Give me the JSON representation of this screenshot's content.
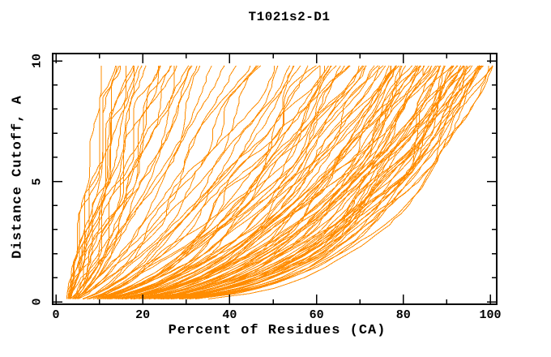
{
  "chart_data": {
    "type": "line",
    "title": "T1021s2-D1",
    "xlabel": "Percent of Residues (CA)",
    "ylabel": "Distance Cutoff, A",
    "xlim": [
      0,
      100
    ],
    "ylim": [
      0,
      10
    ],
    "x_major_ticks": [
      0,
      20,
      40,
      60,
      80,
      100
    ],
    "x_minor_step": 10,
    "y_major_ticks": [
      0,
      5,
      10
    ],
    "y_minor_step": 1,
    "grid": false,
    "legend": "none",
    "frame": "full-box-with-inward-ticks",
    "line_color": "#ff8c00",
    "axis_color": "#000000",
    "background_color": "#ffffff",
    "n_curves": 118,
    "curve_model": "Each curve is one model's GDT profile: percent(d) = start + (end - start) * (d / 9.85)^shape for cutoff d in [0.12, 9.85] Angstroms; all curves start near 3% at ~0.1 A. Values below are [end_percent_at_10A, shape] estimated from the plot.",
    "curves": [
      [
        11,
        0.95
      ],
      [
        12,
        0.9
      ],
      [
        13,
        1.0
      ],
      [
        14,
        0.88
      ],
      [
        15,
        0.92
      ],
      [
        15.5,
        0.85
      ],
      [
        16.5,
        0.9
      ],
      [
        17,
        0.95
      ],
      [
        18,
        0.85
      ],
      [
        19,
        0.9
      ],
      [
        20,
        0.82
      ],
      [
        21,
        0.88
      ],
      [
        22,
        0.8
      ],
      [
        23,
        0.85
      ],
      [
        24,
        0.78
      ],
      [
        25,
        0.84
      ],
      [
        26,
        0.8
      ],
      [
        27,
        0.78
      ],
      [
        28,
        0.82
      ],
      [
        29,
        0.75
      ],
      [
        31,
        0.8
      ],
      [
        32,
        0.74
      ],
      [
        33,
        0.78
      ],
      [
        35,
        0.72
      ],
      [
        36,
        0.75
      ],
      [
        38,
        0.7
      ],
      [
        41,
        0.68
      ],
      [
        43,
        0.72
      ],
      [
        45,
        0.66
      ],
      [
        46,
        0.7
      ],
      [
        48,
        0.64
      ],
      [
        50,
        0.68
      ],
      [
        52,
        0.62
      ],
      [
        54,
        0.66
      ],
      [
        55,
        0.6
      ],
      [
        56,
        0.64
      ],
      [
        57,
        0.6
      ],
      [
        58,
        0.58
      ],
      [
        59,
        0.56
      ],
      [
        60,
        0.55
      ],
      [
        61,
        0.58
      ],
      [
        62,
        0.52
      ],
      [
        63,
        0.56
      ],
      [
        63.5,
        0.54
      ],
      [
        64,
        0.5
      ],
      [
        65,
        0.54
      ],
      [
        66,
        0.5
      ],
      [
        66.5,
        0.51
      ],
      [
        67,
        0.53
      ],
      [
        68,
        0.48
      ],
      [
        69,
        0.52
      ],
      [
        69.5,
        0.5
      ],
      [
        70,
        0.47
      ],
      [
        71,
        0.5
      ],
      [
        72,
        0.46
      ],
      [
        72.5,
        0.48
      ],
      [
        73,
        0.49
      ],
      [
        74,
        0.45
      ],
      [
        75,
        0.48
      ],
      [
        75.5,
        0.44
      ],
      [
        76,
        0.47
      ],
      [
        76.5,
        0.45
      ],
      [
        77,
        0.43
      ],
      [
        78,
        0.46
      ],
      [
        78.5,
        0.42
      ],
      [
        79,
        0.45
      ],
      [
        79.5,
        0.41
      ],
      [
        80,
        0.44
      ],
      [
        80.5,
        0.42
      ],
      [
        81,
        0.43
      ],
      [
        81.5,
        0.42
      ],
      [
        82,
        0.4
      ],
      [
        82.5,
        0.42
      ],
      [
        83,
        0.39
      ],
      [
        83.5,
        0.41
      ],
      [
        84,
        0.38
      ],
      [
        84.2,
        0.4
      ],
      [
        84.5,
        0.4
      ],
      [
        85,
        0.37
      ],
      [
        85.5,
        0.39
      ],
      [
        86,
        0.36
      ],
      [
        86.5,
        0.38
      ],
      [
        86.8,
        0.38
      ],
      [
        87,
        0.36
      ],
      [
        87.5,
        0.37
      ],
      [
        88,
        0.35
      ],
      [
        88.5,
        0.36
      ],
      [
        89,
        0.35
      ],
      [
        89.5,
        0.37
      ],
      [
        90,
        0.34
      ],
      [
        90.5,
        0.36
      ],
      [
        91,
        0.33
      ],
      [
        91.3,
        0.35
      ],
      [
        91.6,
        0.32
      ],
      [
        92,
        0.34
      ],
      [
        92.3,
        0.33
      ],
      [
        92.6,
        0.35
      ],
      [
        93,
        0.32
      ],
      [
        93.3,
        0.34
      ],
      [
        93.6,
        0.31
      ],
      [
        94,
        0.33
      ],
      [
        94.3,
        0.32
      ],
      [
        94.6,
        0.34
      ],
      [
        95,
        0.31
      ],
      [
        95.3,
        0.33
      ],
      [
        95.6,
        0.3
      ],
      [
        96,
        0.32
      ],
      [
        96.3,
        0.31
      ],
      [
        96.6,
        0.33
      ],
      [
        97,
        0.3
      ],
      [
        97.5,
        0.31
      ],
      [
        98,
        0.29
      ],
      [
        98.5,
        0.3
      ],
      [
        99,
        0.28
      ],
      [
        99.3,
        0.3
      ],
      [
        99.6,
        0.27
      ],
      [
        100,
        0.29
      ],
      [
        100,
        0.25
      ]
    ]
  }
}
